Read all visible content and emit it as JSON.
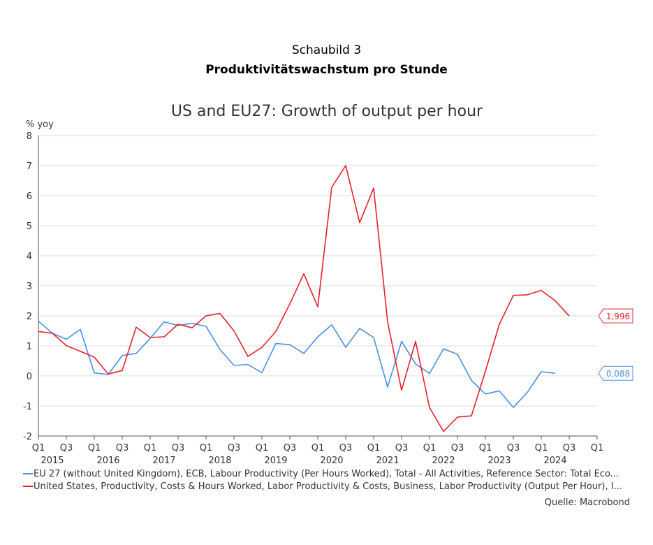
{
  "header": {
    "supertitle": "Schaubild 3",
    "title": "Produktivitätswachstum pro Stunde"
  },
  "source": "Quelle: Macrobond",
  "chart_data": {
    "type": "line",
    "title": "US and EU27: Growth of output per hour",
    "ylabel": "% yoy",
    "ylim": [
      -2,
      8
    ],
    "yticks": [
      "8",
      "7",
      "6",
      "5",
      "4",
      "3",
      "2",
      "1",
      "0",
      "-1",
      "-2"
    ],
    "grid": true,
    "x_quarter_labels": [
      "Q1",
      "Q3",
      "Q1",
      "Q3",
      "Q1",
      "Q3",
      "Q1",
      "Q3",
      "Q1",
      "Q3",
      "Q1",
      "Q3",
      "Q1",
      "Q3",
      "Q1",
      "Q3",
      "Q1",
      "Q3",
      "Q1",
      "Q3",
      "Q1"
    ],
    "x_year_labels": [
      "2015",
      "2016",
      "2017",
      "2018",
      "2019",
      "2020",
      "2021",
      "2022",
      "2023",
      "2024"
    ],
    "x_start": "2015Q1",
    "x_end": "2025Q1",
    "series": [
      {
        "name": "EU 27 (without United Kingdom), ECB, Labour Productivity (Per Hours Worked), Total - All Activities, Reference Sector: Total Eco...",
        "color": "#4a90e2",
        "end_label": "0,088",
        "values": [
          1.82,
          1.42,
          1.22,
          1.55,
          0.1,
          0.05,
          0.68,
          0.75,
          1.25,
          1.8,
          1.68,
          1.75,
          1.65,
          0.88,
          0.35,
          0.38,
          0.11,
          1.08,
          1.04,
          0.75,
          1.3,
          1.7,
          0.95,
          1.58,
          1.28,
          -0.37,
          1.15,
          0.4,
          0.08,
          0.9,
          0.72,
          -0.15,
          -0.6,
          -0.5,
          -1.05,
          -0.55,
          0.14,
          0.088
        ]
      },
      {
        "name": "United States, Productivity, Costs & Hours Worked, Labor Productivity & Costs, Business, Labor Productivity (Output Per Hour), I...",
        "color": "#e8202c",
        "end_label": "1,996",
        "values": [
          1.48,
          1.42,
          1.01,
          0.82,
          0.62,
          0.06,
          0.18,
          1.62,
          1.28,
          1.3,
          1.72,
          1.6,
          2.0,
          2.08,
          1.5,
          0.65,
          0.95,
          1.48,
          2.4,
          3.4,
          2.3,
          6.28,
          7.0,
          5.1,
          6.25,
          1.8,
          -0.48,
          1.15,
          -1.05,
          -1.85,
          -1.37,
          -1.33,
          0.15,
          1.72,
          2.68,
          2.7,
          2.85,
          2.5,
          1.996
        ]
      }
    ]
  }
}
